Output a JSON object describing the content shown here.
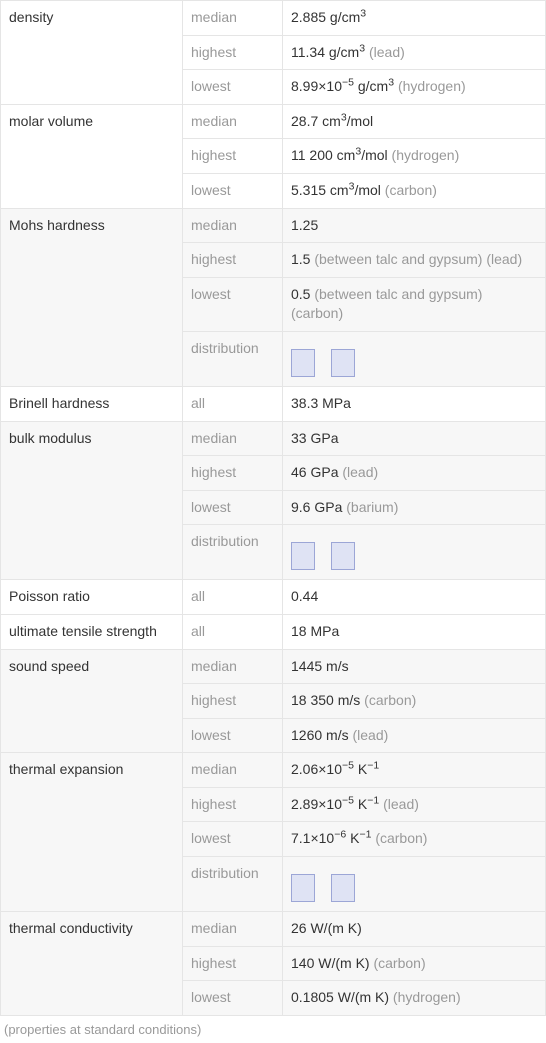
{
  "groups": [
    {
      "name": "density",
      "shaded": false,
      "rows": [
        {
          "stat": "median",
          "value": "2.885 g/cm",
          "sup": "3",
          "note": ""
        },
        {
          "stat": "highest",
          "value": "11.34 g/cm",
          "sup": "3",
          "note": "(lead)"
        },
        {
          "stat": "lowest",
          "value": "8.99×10",
          "sup": "−5",
          "tail": " g/cm",
          "sup2": "3",
          "note": "(hydrogen)"
        }
      ]
    },
    {
      "name": "molar volume",
      "shaded": false,
      "rows": [
        {
          "stat": "median",
          "value": "28.7 cm",
          "sup": "3",
          "tail": "/mol",
          "note": ""
        },
        {
          "stat": "highest",
          "value": "11 200 cm",
          "sup": "3",
          "tail": "/mol",
          "note": "(hydrogen)"
        },
        {
          "stat": "lowest",
          "value": "5.315 cm",
          "sup": "3",
          "tail": "/mol",
          "note": "(carbon)"
        }
      ]
    },
    {
      "name": "Mohs hardness",
      "shaded": true,
      "rows": [
        {
          "stat": "median",
          "value": "1.25",
          "note": ""
        },
        {
          "stat": "highest",
          "value": "1.5 ",
          "note": "(between talc and gypsum)  (lead)"
        },
        {
          "stat": "lowest",
          "value": "0.5 ",
          "note": "(between talc and gypsum)  (carbon)"
        },
        {
          "stat": "distribution",
          "chart": {
            "bars": [
              28,
              28
            ],
            "gap": true,
            "bar_fill": "#dfe3f4",
            "bar_border": "#9ca6d6"
          }
        }
      ]
    },
    {
      "name": "Brinell hardness",
      "shaded": false,
      "rows": [
        {
          "stat": "all",
          "value": "38.3 MPa",
          "note": ""
        }
      ]
    },
    {
      "name": "bulk modulus",
      "shaded": true,
      "rows": [
        {
          "stat": "median",
          "value": "33 GPa",
          "note": ""
        },
        {
          "stat": "highest",
          "value": "46 GPa ",
          "note": "(lead)"
        },
        {
          "stat": "lowest",
          "value": "9.6 GPa ",
          "note": "(barium)"
        },
        {
          "stat": "distribution",
          "chart": {
            "bars": [
              28,
              28
            ],
            "gap": true,
            "bar_fill": "#dfe3f4",
            "bar_border": "#9ca6d6"
          }
        }
      ]
    },
    {
      "name": "Poisson ratio",
      "shaded": false,
      "rows": [
        {
          "stat": "all",
          "value": "0.44",
          "note": ""
        }
      ]
    },
    {
      "name": "ultimate tensile strength",
      "shaded": false,
      "rows": [
        {
          "stat": "all",
          "value": "18 MPa",
          "note": ""
        }
      ]
    },
    {
      "name": "sound speed",
      "shaded": true,
      "rows": [
        {
          "stat": "median",
          "value": "1445 m/s",
          "note": ""
        },
        {
          "stat": "highest",
          "value": "18 350 m/s ",
          "note": "(carbon)"
        },
        {
          "stat": "lowest",
          "value": "1260 m/s ",
          "note": "(lead)"
        }
      ]
    },
    {
      "name": "thermal expansion",
      "shaded": true,
      "rows": [
        {
          "stat": "median",
          "value": "2.06×10",
          "sup": "−5",
          "tail": " K",
          "sup2": "−1",
          "note": ""
        },
        {
          "stat": "highest",
          "value": "2.89×10",
          "sup": "−5",
          "tail": " K",
          "sup2": "−1",
          "note": "(lead)"
        },
        {
          "stat": "lowest",
          "value": "7.1×10",
          "sup": "−6",
          "tail": " K",
          "sup2": "−1",
          "note": "(carbon)"
        },
        {
          "stat": "distribution",
          "chart": {
            "bars": [
              28,
              28
            ],
            "gap": true,
            "bar_fill": "#dfe3f4",
            "bar_border": "#9ca6d6"
          }
        }
      ]
    },
    {
      "name": "thermal conductivity",
      "shaded": true,
      "rows": [
        {
          "stat": "median",
          "value": "26 W/(m K)",
          "note": ""
        },
        {
          "stat": "highest",
          "value": "140 W/(m K) ",
          "note": "(carbon)"
        },
        {
          "stat": "lowest",
          "value": "0.1805 W/(m K) ",
          "note": "(hydrogen)"
        }
      ]
    }
  ],
  "footnote": "(properties at standard conditions)"
}
